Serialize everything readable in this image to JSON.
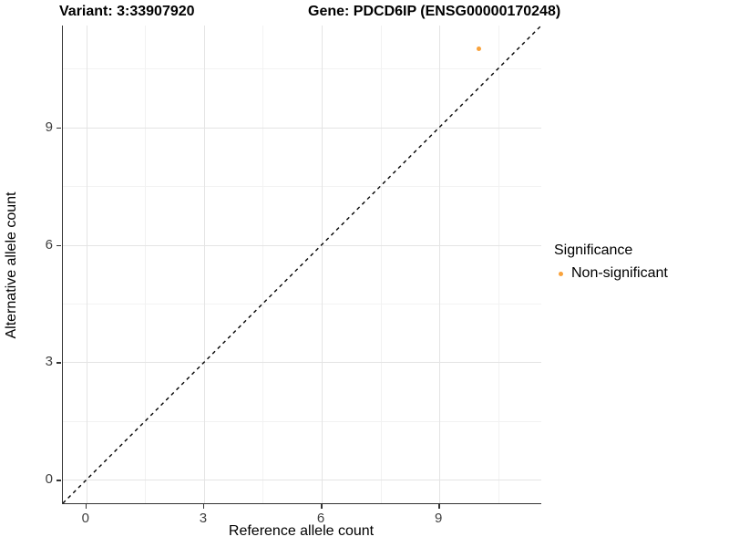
{
  "titles": {
    "variant": "Variant: 3:33907920",
    "gene": "Gene: PDCD6IP (ENSG00000170248)"
  },
  "chart_data": {
    "type": "scatter",
    "xlabel": "Reference allele count",
    "ylabel": "Alternative allele count",
    "xlim": [
      -0.6,
      11.6
    ],
    "ylim": [
      -0.6,
      11.6
    ],
    "x_ticks": [
      0,
      3,
      6,
      9
    ],
    "y_ticks": [
      0,
      3,
      6,
      9
    ],
    "minor_ticks": [
      1.5,
      4.5,
      7.5,
      10.5
    ],
    "grid": {
      "major_color": "#e4e4e4",
      "minor_color": "#f2f2f2",
      "grid_on": true
    },
    "points": [
      {
        "x": 10,
        "y": 11,
        "series": "Non-significant",
        "color": "#f9a23b"
      }
    ],
    "reference_line": {
      "description": "identity line y = x",
      "from": [
        -0.6,
        -0.6
      ],
      "to": [
        11.6,
        11.6
      ],
      "style": "dashed",
      "color": "#000000"
    },
    "legend": {
      "title": "Significance",
      "position": "right",
      "items": [
        {
          "label": "Non-significant",
          "color": "#f9a23b",
          "marker": "circle"
        }
      ]
    }
  }
}
